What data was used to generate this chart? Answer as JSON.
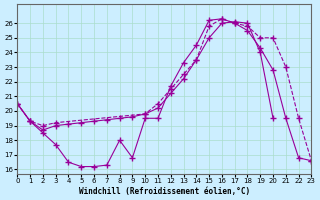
{
  "xlabel": "Windchill (Refroidissement éolien,°C)",
  "bg_color": "#cceeff",
  "line_color": "#990099",
  "grid_color": "#aaddcc",
  "xlim": [
    0,
    23
  ],
  "ylim": [
    16,
    27
  ],
  "yticks": [
    16,
    17,
    18,
    19,
    20,
    21,
    22,
    23,
    24,
    25,
    26
  ],
  "xticks": [
    0,
    1,
    2,
    3,
    4,
    5,
    6,
    7,
    8,
    9,
    10,
    11,
    12,
    13,
    14,
    15,
    16,
    17,
    18,
    19,
    20,
    21,
    22,
    23
  ],
  "line1_x": [
    0,
    1,
    2,
    3,
    4,
    5,
    6,
    7,
    8,
    9,
    10,
    11,
    12,
    13,
    14,
    15,
    16,
    17,
    18,
    19,
    20,
    21,
    22,
    23
  ],
  "line1_y": [
    20.5,
    19.3,
    18.5,
    17.7,
    16.5,
    16.2,
    16.2,
    16.3,
    18.0,
    16.8,
    19.5,
    19.5,
    21.7,
    23.3,
    24.5,
    26.2,
    26.3,
    26.0,
    25.5,
    24.3,
    22.8,
    19.5,
    16.8,
    16.6
  ],
  "line2_x": [
    0,
    1,
    2,
    3,
    4,
    5,
    6,
    7,
    8,
    9,
    10,
    11,
    12,
    13,
    14,
    15,
    16,
    17,
    18,
    19,
    20
  ],
  "line2_y": [
    20.5,
    19.3,
    18.7,
    19.0,
    19.1,
    19.2,
    19.3,
    19.4,
    19.5,
    19.6,
    19.8,
    20.2,
    21.2,
    22.2,
    23.5,
    25.0,
    26.0,
    26.1,
    26.0,
    24.0,
    19.5
  ],
  "line3_x": [
    0,
    1,
    2,
    3,
    10,
    11,
    12,
    13,
    14,
    15,
    16,
    17,
    18,
    19,
    20,
    21,
    22,
    23
  ],
  "line3_y": [
    20.5,
    19.3,
    19.0,
    19.2,
    19.8,
    20.5,
    21.5,
    22.5,
    23.5,
    25.8,
    26.3,
    26.0,
    25.8,
    25.0,
    25.0,
    23.0,
    19.5,
    16.6
  ]
}
